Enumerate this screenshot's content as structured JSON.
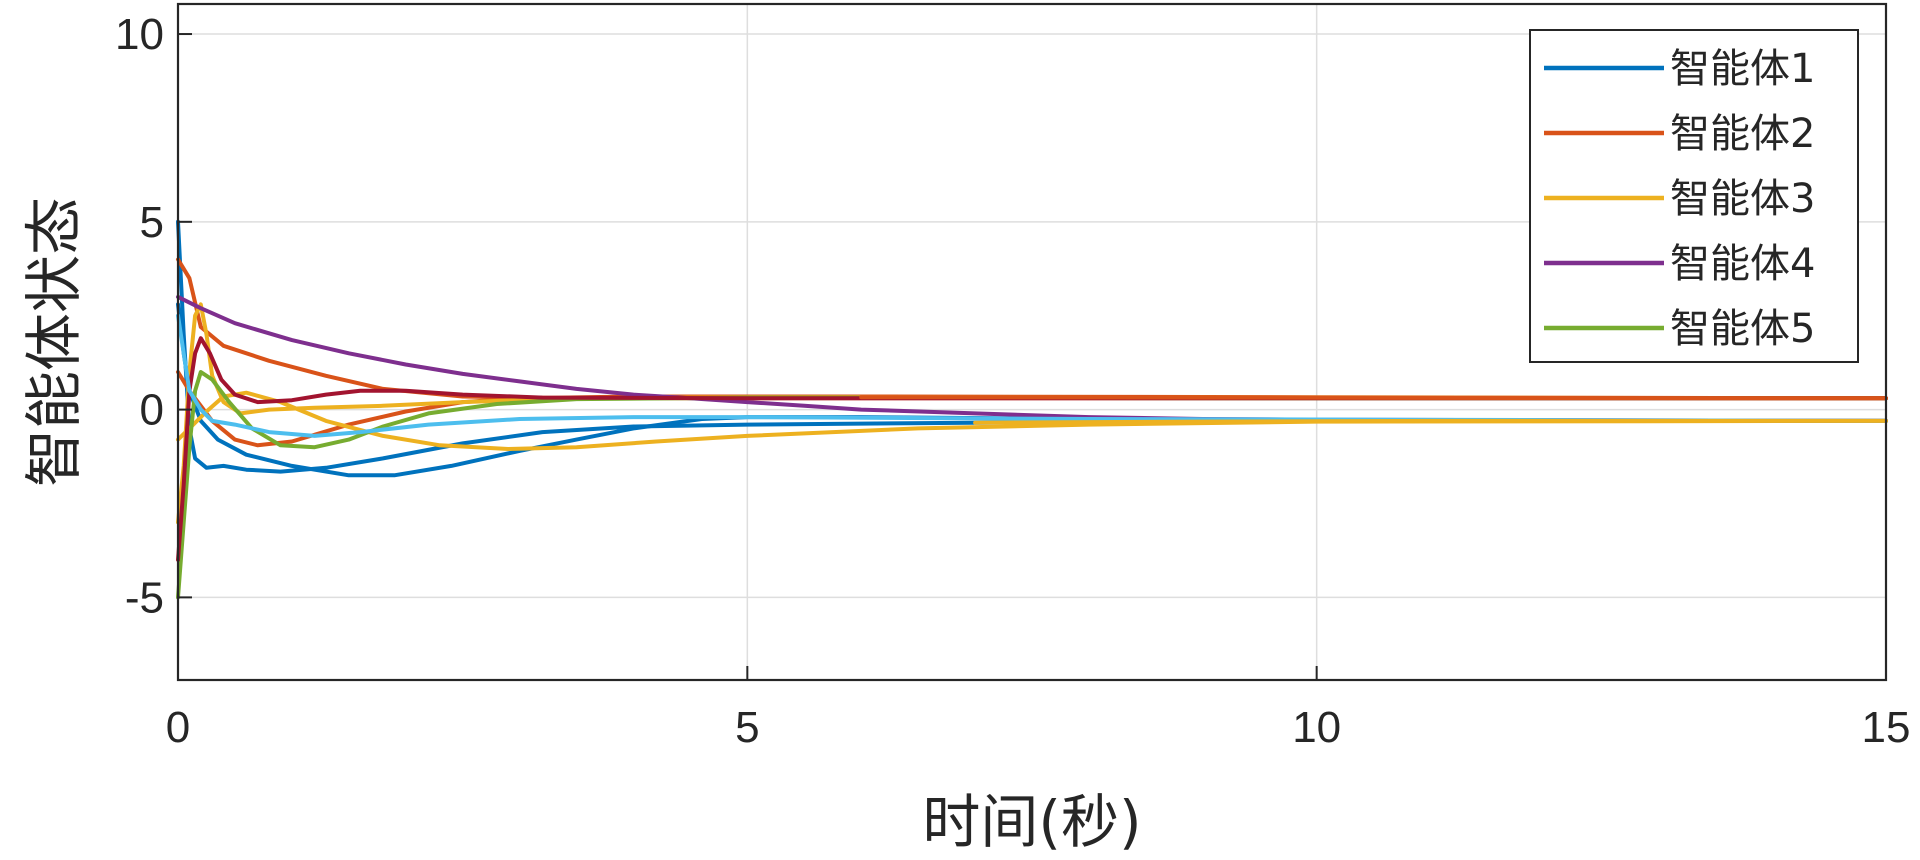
{
  "chart_data": {
    "type": "line",
    "xlabel": "时间(秒)",
    "ylabel": "智能体状态",
    "xlim": [
      0,
      15
    ],
    "ylim": [
      -7.2,
      10.8
    ],
    "xticks": [
      0,
      5,
      10,
      15
    ],
    "yticks": [
      -5,
      0,
      5,
      10
    ],
    "xtick_labels": [
      "0",
      "5",
      "10",
      "15"
    ],
    "ytick_labels": [
      "-5",
      "0",
      "5",
      "10"
    ],
    "grid": true,
    "legend_position": "top-right",
    "legend": [
      {
        "label": "智能体1",
        "color": "#0072BD"
      },
      {
        "label": "智能体2",
        "color": "#D95319"
      },
      {
        "label": "智能体3",
        "color": "#EDB120"
      },
      {
        "label": "智能体4",
        "color": "#7E2F8E"
      },
      {
        "label": "智能体5",
        "color": "#77AC30"
      }
    ],
    "series": [
      {
        "color": "#0072BD",
        "points": [
          [
            0,
            5
          ],
          [
            0.05,
            2
          ],
          [
            0.1,
            -0.5
          ],
          [
            0.15,
            -1.3
          ],
          [
            0.25,
            -1.55
          ],
          [
            0.4,
            -1.5
          ],
          [
            0.6,
            -1.6
          ],
          [
            0.9,
            -1.65
          ],
          [
            1.3,
            -1.55
          ],
          [
            1.8,
            -1.3
          ],
          [
            2.5,
            -0.9
          ],
          [
            3.2,
            -0.6
          ],
          [
            4,
            -0.45
          ],
          [
            5,
            -0.4
          ],
          [
            7,
            -0.35
          ],
          [
            10,
            -0.3
          ],
          [
            15,
            -0.3
          ]
        ]
      },
      {
        "color": "#0072BD",
        "points": [
          [
            0,
            2.8
          ],
          [
            0.05,
            1.5
          ],
          [
            0.1,
            0.5
          ],
          [
            0.2,
            -0.3
          ],
          [
            0.35,
            -0.8
          ],
          [
            0.6,
            -1.2
          ],
          [
            1,
            -1.5
          ],
          [
            1.5,
            -1.75
          ],
          [
            1.9,
            -1.75
          ],
          [
            2.4,
            -1.5
          ],
          [
            3,
            -1.1
          ],
          [
            3.5,
            -0.8
          ],
          [
            4,
            -0.5
          ],
          [
            4.6,
            -0.25
          ],
          [
            5,
            -0.2
          ],
          [
            6,
            -0.2
          ],
          [
            8,
            -0.25
          ],
          [
            10,
            -0.28
          ],
          [
            15,
            -0.3
          ]
        ]
      },
      {
        "color": "#D95319",
        "points": [
          [
            0,
            4
          ],
          [
            0.1,
            3.5
          ],
          [
            0.2,
            2.2
          ],
          [
            0.4,
            1.7
          ],
          [
            0.8,
            1.3
          ],
          [
            1.3,
            0.9
          ],
          [
            1.8,
            0.55
          ],
          [
            2.5,
            0.35
          ],
          [
            3.5,
            0.3
          ],
          [
            5,
            0.3
          ],
          [
            10,
            0.3
          ],
          [
            15,
            0.3
          ]
        ]
      },
      {
        "color": "#D95319",
        "points": [
          [
            0,
            1
          ],
          [
            0.1,
            0.5
          ],
          [
            0.2,
            0.1
          ],
          [
            0.3,
            -0.3
          ],
          [
            0.5,
            -0.8
          ],
          [
            0.7,
            -0.95
          ],
          [
            1,
            -0.85
          ],
          [
            1.5,
            -0.4
          ],
          [
            2,
            -0.05
          ],
          [
            2.5,
            0.2
          ],
          [
            3,
            0.3
          ],
          [
            4,
            0.35
          ],
          [
            6,
            0.35
          ],
          [
            10,
            0.33
          ],
          [
            15,
            0.3
          ]
        ]
      },
      {
        "color": "#EDB120",
        "points": [
          [
            0,
            -3
          ],
          [
            0.05,
            -1.5
          ],
          [
            0.1,
            1
          ],
          [
            0.15,
            2.5
          ],
          [
            0.2,
            2.8
          ],
          [
            0.25,
            2
          ],
          [
            0.3,
            0.9
          ],
          [
            0.4,
            0.2
          ],
          [
            0.55,
            -0.1
          ],
          [
            0.8,
            0
          ],
          [
            1.2,
            0.05
          ],
          [
            1.8,
            0.1
          ],
          [
            2.5,
            0.2
          ],
          [
            3.5,
            0.3
          ],
          [
            5,
            0.33
          ],
          [
            10,
            0.32
          ],
          [
            15,
            0.3
          ]
        ]
      },
      {
        "color": "#EDB120",
        "points": [
          [
            0,
            -0.8
          ],
          [
            0.1,
            -0.5
          ],
          [
            0.25,
            -0.05
          ],
          [
            0.4,
            0.35
          ],
          [
            0.6,
            0.45
          ],
          [
            0.9,
            0.2
          ],
          [
            1.3,
            -0.3
          ],
          [
            1.8,
            -0.7
          ],
          [
            2.3,
            -0.95
          ],
          [
            2.9,
            -1.05
          ],
          [
            3.5,
            -1
          ],
          [
            4.2,
            -0.85
          ],
          [
            5,
            -0.7
          ],
          [
            6.5,
            -0.5
          ],
          [
            8,
            -0.4
          ],
          [
            10,
            -0.32
          ],
          [
            15,
            -0.3
          ]
        ]
      },
      {
        "color": "#7E2F8E",
        "points": [
          [
            0,
            3
          ],
          [
            0.2,
            2.7
          ],
          [
            0.5,
            2.3
          ],
          [
            1,
            1.85
          ],
          [
            1.5,
            1.5
          ],
          [
            2,
            1.2
          ],
          [
            2.5,
            0.95
          ],
          [
            3,
            0.75
          ],
          [
            3.5,
            0.55
          ],
          [
            4,
            0.4
          ],
          [
            4.5,
            0.3
          ],
          [
            5,
            0.2
          ],
          [
            5.5,
            0.1
          ],
          [
            6,
            0
          ],
          [
            7,
            -0.1
          ],
          [
            8,
            -0.2
          ],
          [
            9,
            -0.25
          ],
          [
            10,
            -0.27
          ],
          [
            12,
            -0.28
          ],
          [
            15,
            -0.3
          ]
        ]
      },
      {
        "color": "#77AC30",
        "points": [
          [
            0,
            -5
          ],
          [
            0.05,
            -3
          ],
          [
            0.1,
            -1
          ],
          [
            0.15,
            0.5
          ],
          [
            0.2,
            1
          ],
          [
            0.3,
            0.8
          ],
          [
            0.45,
            0.2
          ],
          [
            0.65,
            -0.5
          ],
          [
            0.9,
            -0.95
          ],
          [
            1.2,
            -1
          ],
          [
            1.5,
            -0.8
          ],
          [
            1.8,
            -0.45
          ],
          [
            2.2,
            -0.1
          ],
          [
            2.8,
            0.15
          ],
          [
            3.5,
            0.28
          ],
          [
            5,
            0.32
          ],
          [
            10,
            0.3
          ],
          [
            15,
            0.3
          ]
        ]
      },
      {
        "color": "#A2142F",
        "points": [
          [
            0,
            -4
          ],
          [
            0.05,
            -2
          ],
          [
            0.1,
            0.5
          ],
          [
            0.15,
            1.5
          ],
          [
            0.2,
            1.9
          ],
          [
            0.28,
            1.5
          ],
          [
            0.38,
            0.8
          ],
          [
            0.5,
            0.4
          ],
          [
            0.7,
            0.2
          ],
          [
            1,
            0.25
          ],
          [
            1.3,
            0.4
          ],
          [
            1.6,
            0.5
          ],
          [
            2,
            0.5
          ],
          [
            2.5,
            0.4
          ],
          [
            3.2,
            0.32
          ],
          [
            5,
            0.3
          ],
          [
            15,
            0.3
          ]
        ]
      },
      {
        "color": "#4DBEEE",
        "points": [
          [
            0,
            2.5
          ],
          [
            0.05,
            1.5
          ],
          [
            0.1,
            0.5
          ],
          [
            0.2,
            0
          ],
          [
            0.3,
            -0.3
          ],
          [
            0.5,
            -0.4
          ],
          [
            0.8,
            -0.6
          ],
          [
            1.2,
            -0.7
          ],
          [
            1.6,
            -0.6
          ],
          [
            2.2,
            -0.4
          ],
          [
            3,
            -0.25
          ],
          [
            4,
            -0.2
          ],
          [
            5,
            -0.2
          ],
          [
            8,
            -0.25
          ],
          [
            15,
            -0.3
          ]
        ]
      },
      {
        "color": "#EDB120",
        "points": [
          [
            7,
            -0.35
          ],
          [
            9,
            -0.32
          ],
          [
            11,
            -0.3
          ],
          [
            15,
            -0.3
          ]
        ]
      },
      {
        "color": "#D95319",
        "points": [
          [
            6,
            0.33
          ],
          [
            9,
            0.32
          ],
          [
            12,
            0.31
          ],
          [
            15,
            0.3
          ]
        ]
      }
    ]
  }
}
